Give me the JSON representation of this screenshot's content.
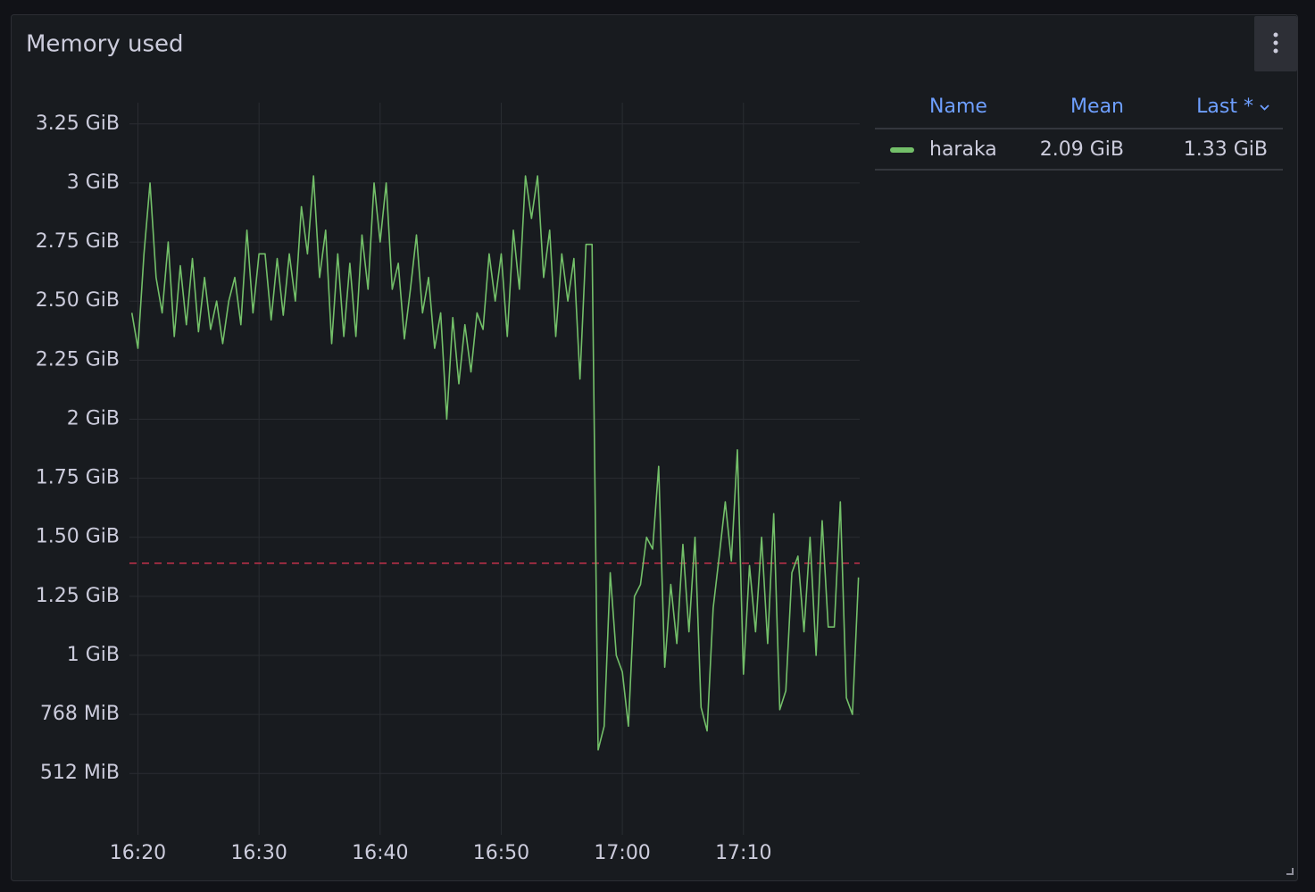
{
  "chart_data": {
    "type": "line",
    "title": "Memory used",
    "x": [
      979.5,
      980,
      980.5,
      981,
      981.5,
      982,
      982.5,
      983,
      983.5,
      984,
      984.5,
      985,
      985.5,
      986,
      986.5,
      987,
      987.5,
      988,
      988.5,
      989,
      989.5,
      990,
      990.5,
      991,
      991.5,
      992,
      992.5,
      993,
      993.5,
      994,
      994.5,
      995,
      995.5,
      996,
      996.5,
      997,
      997.5,
      998,
      998.5,
      999,
      999.5,
      1000,
      1000.5,
      1001,
      1001.5,
      1002,
      1002.5,
      1003,
      1003.5,
      1004,
      1004.5,
      1005,
      1005.5,
      1006,
      1006.5,
      1007,
      1007.5,
      1008,
      1008.5,
      1009,
      1009.5,
      1010,
      1010.5,
      1011,
      1011.5,
      1012,
      1012.5,
      1013,
      1013.5,
      1014,
      1014.5,
      1015,
      1015.5,
      1016,
      1016.5,
      1017,
      1017.5,
      1018,
      1018.5,
      1019,
      1019.5,
      1020,
      1020.5,
      1021,
      1021.5,
      1022,
      1022.5,
      1023,
      1023.5,
      1024,
      1024.5,
      1025,
      1025.5,
      1026,
      1026.5,
      1027,
      1027.5,
      1028,
      1028.5,
      1029,
      1029.5,
      1030,
      1030.5,
      1031,
      1031.5,
      1032,
      1032.5,
      1033,
      1033.5,
      1034,
      1034.5,
      1035,
      1035.5,
      1036,
      1036.5,
      1037,
      1037.5,
      1038,
      1038.5,
      1039,
      1039.5
    ],
    "series": [
      {
        "name": "haraka",
        "color": "#73bf69",
        "values": [
          2.45,
          2.3,
          2.7,
          3.0,
          2.6,
          2.45,
          2.75,
          2.35,
          2.65,
          2.4,
          2.68,
          2.37,
          2.6,
          2.38,
          2.5,
          2.32,
          2.5,
          2.6,
          2.4,
          2.8,
          2.45,
          2.7,
          2.7,
          2.42,
          2.68,
          2.44,
          2.7,
          2.5,
          2.9,
          2.7,
          3.03,
          2.6,
          2.8,
          2.32,
          2.7,
          2.35,
          2.66,
          2.35,
          2.78,
          2.55,
          3.0,
          2.75,
          3.0,
          2.55,
          2.66,
          2.34,
          2.55,
          2.78,
          2.45,
          2.6,
          2.3,
          2.45,
          2.0,
          2.43,
          2.15,
          2.4,
          2.2,
          2.45,
          2.38,
          2.7,
          2.5,
          2.7,
          2.35,
          2.8,
          2.55,
          3.03,
          2.85,
          3.03,
          2.6,
          2.8,
          2.35,
          2.7,
          2.5,
          2.68,
          2.17,
          2.74,
          2.74,
          0.6,
          0.7,
          1.35,
          1.0,
          0.93,
          0.7,
          1.25,
          1.3,
          1.5,
          1.45,
          1.8,
          0.95,
          1.3,
          1.05,
          1.47,
          1.1,
          1.5,
          0.78,
          0.68,
          1.2,
          1.42,
          1.65,
          1.4,
          1.87,
          0.92,
          1.38,
          1.1,
          1.5,
          1.05,
          1.6,
          0.77,
          0.85,
          1.35,
          1.42,
          1.1,
          1.5,
          1.0,
          1.57,
          1.12,
          1.12,
          1.65,
          0.82,
          0.75,
          1.33
        ]
      }
    ],
    "xlim": [
      979.3,
      1039.6
    ],
    "xticks": [
      {
        "value": 980,
        "label": "16:20"
      },
      {
        "value": 990,
        "label": "16:30"
      },
      {
        "value": 1000,
        "label": "16:40"
      },
      {
        "value": 1010,
        "label": "16:50"
      },
      {
        "value": 1020,
        "label": "17:00"
      },
      {
        "value": 1030,
        "label": "17:10"
      }
    ],
    "ylim": [
      0.24,
      3.34
    ],
    "yticks": [
      {
        "value": 0.5,
        "label": "512 MiB"
      },
      {
        "value": 0.75,
        "label": "768 MiB"
      },
      {
        "value": 1,
        "label": "1 GiB"
      },
      {
        "value": 1.25,
        "label": "1.25 GiB"
      },
      {
        "value": 1.5,
        "label": "1.50 GiB"
      },
      {
        "value": 1.75,
        "label": "1.75 GiB"
      },
      {
        "value": 2,
        "label": "2 GiB"
      },
      {
        "value": 2.25,
        "label": "2.25 GiB"
      },
      {
        "value": 2.5,
        "label": "2.50 GiB"
      },
      {
        "value": 2.75,
        "label": "2.75 GiB"
      },
      {
        "value": 3,
        "label": "3 GiB"
      },
      {
        "value": 3.25,
        "label": "3.25 GiB"
      }
    ],
    "grid": true,
    "threshold": {
      "value": 1.39,
      "color": "#c4314b"
    },
    "legend": {
      "columns": [
        "Name",
        "Mean",
        "Last *"
      ],
      "values": [
        [
          "2.09 GiB",
          "1.33 GiB"
        ]
      ]
    }
  }
}
